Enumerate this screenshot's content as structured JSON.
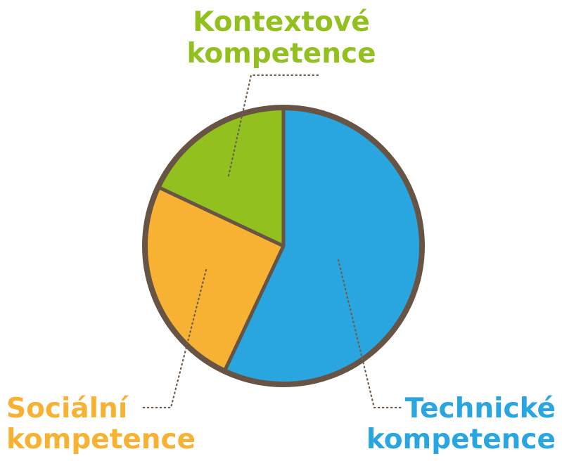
{
  "chart_data": {
    "type": "pie",
    "slices": [
      {
        "label_lines": [
          "Technické",
          "kompetence"
        ],
        "value": 57,
        "color": "#29a6df"
      },
      {
        "label_lines": [
          "Sociální",
          "kompetence"
        ],
        "value": 25,
        "color": "#f7b234"
      },
      {
        "label_lines": [
          "Kontextové",
          "kompetence"
        ],
        "value": 18,
        "color": "#92c01f"
      }
    ],
    "outline_color": "#675444",
    "start_angle_deg": 0,
    "direction": "clockwise",
    "legend": "none",
    "grid": false
  }
}
